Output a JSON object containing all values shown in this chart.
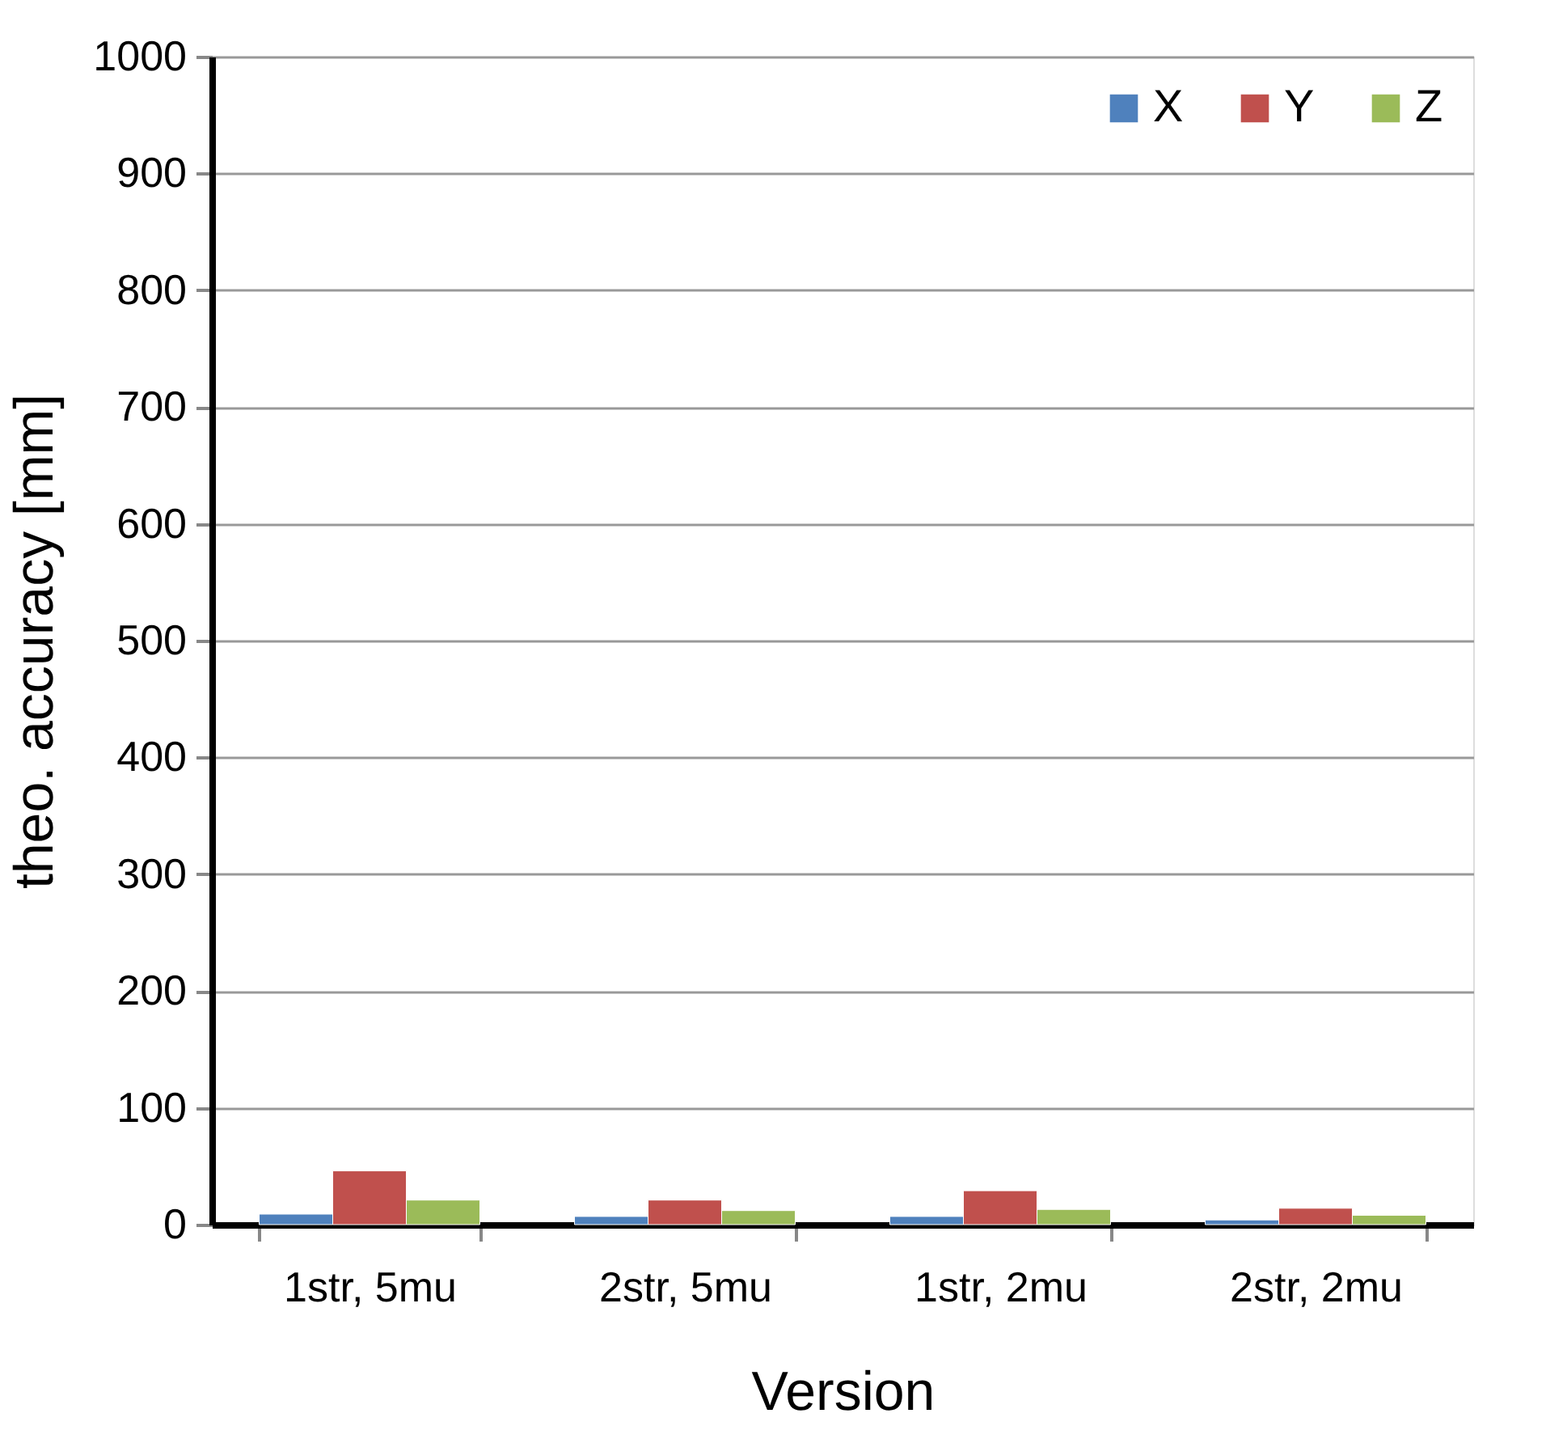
{
  "chart_data": {
    "type": "bar",
    "xlabel": "Version",
    "ylabel": "theo. accuracy [mm]",
    "categories": [
      "1str, 5mu",
      "2str, 5mu",
      "1str, 2mu",
      "2str, 2mu"
    ],
    "series": [
      {
        "name": "X",
        "color": "#4f81bd",
        "values": [
          9,
          7,
          7,
          4
        ]
      },
      {
        "name": "Y",
        "color": "#c0504d",
        "values": [
          46,
          21,
          29,
          14
        ]
      },
      {
        "name": "Z",
        "color": "#9bbb59",
        "values": [
          21,
          12,
          13,
          8
        ]
      }
    ],
    "ylim": [
      0,
      1000
    ],
    "yticks": [
      0,
      100,
      200,
      300,
      400,
      500,
      600,
      700,
      800,
      900,
      1000
    ],
    "grid": "y",
    "legend": "top right"
  }
}
